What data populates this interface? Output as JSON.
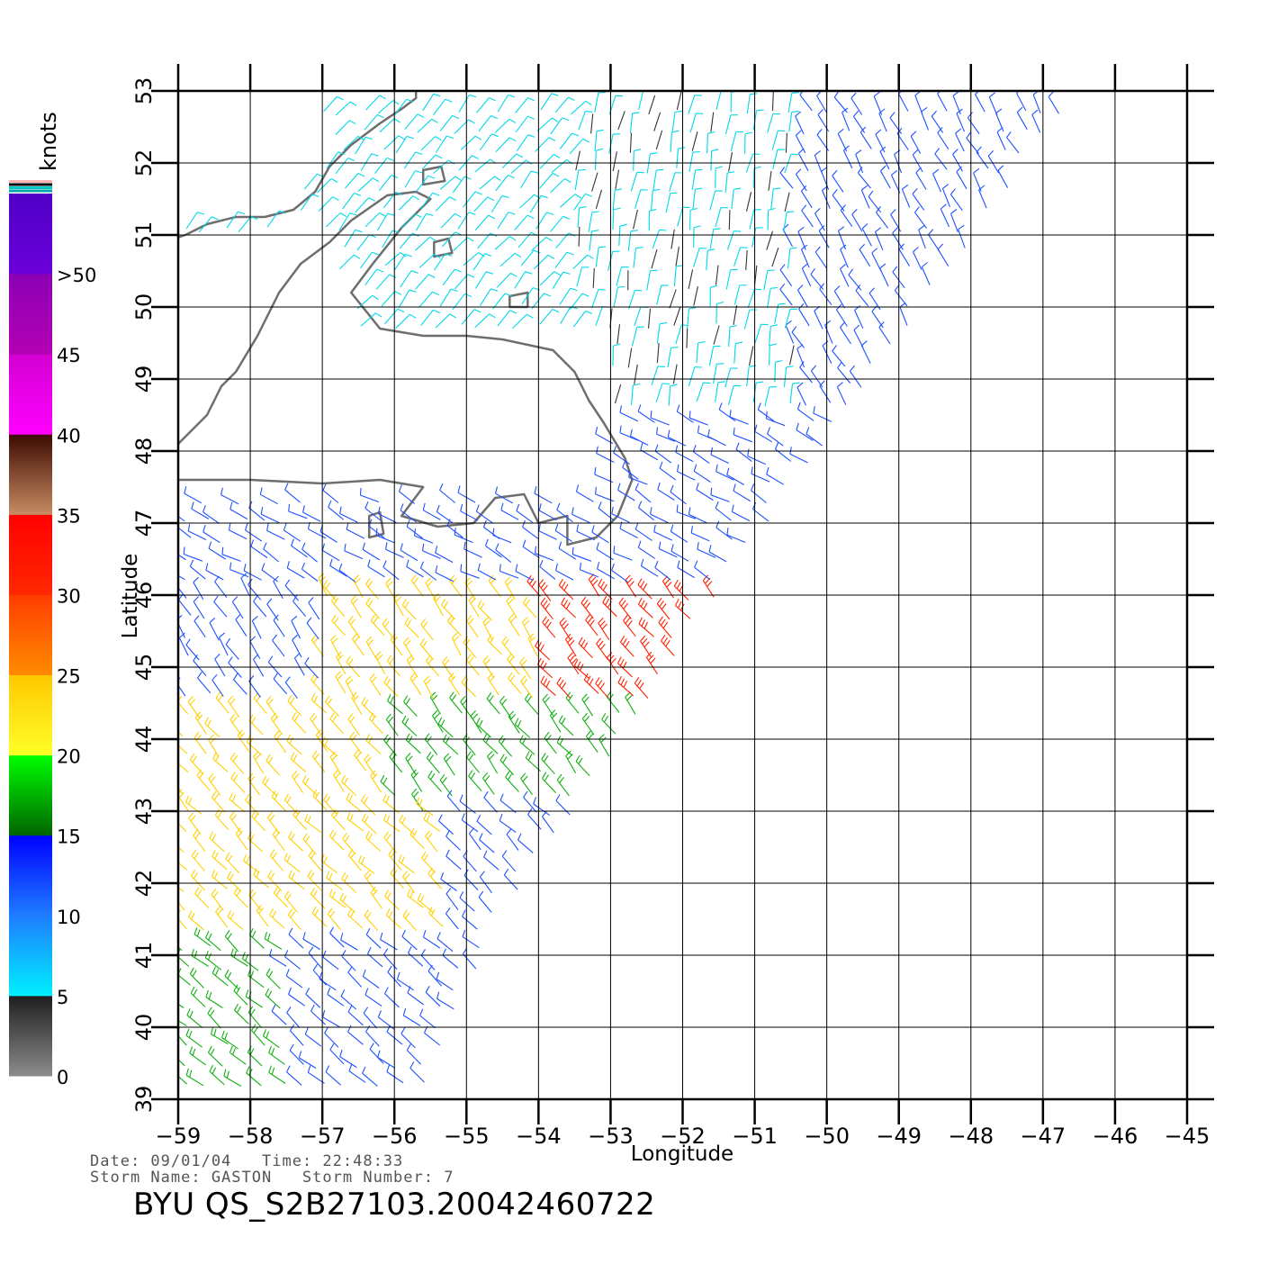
{
  "map": {
    "region": "Newfoundland / Grand Banks, NW Atlantic",
    "lon_range": [
      -59,
      -45
    ],
    "lat_range": [
      39,
      53
    ],
    "lon_ticks": [
      "−59",
      "−58",
      "−57",
      "−56",
      "−55",
      "−54",
      "−53",
      "−52",
      "−51",
      "−50",
      "−49",
      "−48",
      "−47",
      "−46",
      "−45"
    ],
    "lat_ticks": [
      "39",
      "40",
      "41",
      "42",
      "43",
      "44",
      "45",
      "46",
      "47",
      "48",
      "49",
      "50",
      "51",
      "52",
      "53"
    ],
    "xlabel": "Longitude",
    "ylabel": "Latitude"
  },
  "colorbar": {
    "unit": "knots",
    "labels": [
      "0",
      "5",
      "10",
      "15",
      "20",
      "25",
      "30",
      "35",
      "40",
      "45",
      ">50"
    ],
    "bands": [
      {
        "from": 0,
        "to": 5,
        "colors": [
          "#8c8c8c",
          "#1e1e1e"
        ]
      },
      {
        "from": 5,
        "to": 10,
        "colors": [
          "#00f0ff",
          "#1e7dff"
        ]
      },
      {
        "from": 10,
        "to": 15,
        "colors": [
          "#1e7dff",
          "#0000ff"
        ]
      },
      {
        "from": 15,
        "to": 20,
        "colors": [
          "#006400",
          "#00ff00"
        ]
      },
      {
        "from": 20,
        "to": 25,
        "colors": [
          "#ffff28",
          "#ffc800"
        ]
      },
      {
        "from": 25,
        "to": 30,
        "colors": [
          "#ff8c00",
          "#ff3c00"
        ]
      },
      {
        "from": 30,
        "to": 35,
        "colors": [
          "#ff2800",
          "#ff0000"
        ]
      },
      {
        "from": 35,
        "to": 40,
        "colors": [
          "#c88c64",
          "#3c0a00"
        ]
      },
      {
        "from": 40,
        "to": 45,
        "colors": [
          "#ff00ff",
          "#d200d2"
        ]
      },
      {
        "from": 45,
        "to": 50,
        "colors": [
          "#b400b4",
          "#8c00b4"
        ]
      },
      {
        "from": 50,
        "to": 55,
        "colors": [
          "#6a00d8",
          "#5000c8"
        ]
      }
    ],
    "cap_colors": [
      "#ffb4b4",
      "#000000",
      "#00c8c8",
      "#00aaaa"
    ]
  },
  "colors": {
    "coastline": "#6e6e6e",
    "grid": "#000000",
    "background": "#ffffff"
  },
  "info": {
    "date_line": "Date: 09/01/04   Time: 22:48:33",
    "storm_line": "Storm Name: GASTON   Storm Number: 7"
  },
  "product": {
    "title": "BYU QS_S2B27103.20042460722"
  }
}
